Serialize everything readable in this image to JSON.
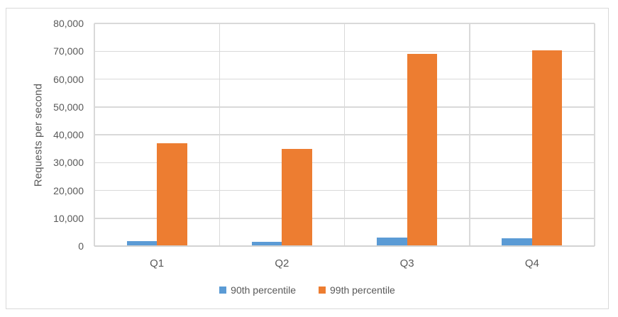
{
  "chart_data": {
    "type": "bar",
    "title": "",
    "categories": [
      "Q1",
      "Q2",
      "Q3",
      "Q4"
    ],
    "series": [
      {
        "name": "90th percentile",
        "color": "#5B9BD5",
        "values": [
          1800,
          1500,
          3000,
          2800
        ]
      },
      {
        "name": "99th percentile",
        "color": "#ED7D31",
        "values": [
          37000,
          35000,
          69000,
          70200
        ]
      }
    ],
    "xlabel": "",
    "ylabel": "Requests per second",
    "ylim": [
      0,
      80000
    ],
    "y_tick_step": 10000,
    "y_tick_labels": [
      "0",
      "10,000",
      "20,000",
      "30,000",
      "40,000",
      "50,000",
      "60,000",
      "70,000",
      "80,000"
    ],
    "grid": "horizontal major gridlines plus vertical lines at category boundaries",
    "legend_position": "bottom-center"
  },
  "colors": {
    "gridline": "#D9D9D9",
    "axis_text": "#595959",
    "frame_border": "#D9D9D9",
    "background": "#FFFFFF"
  }
}
